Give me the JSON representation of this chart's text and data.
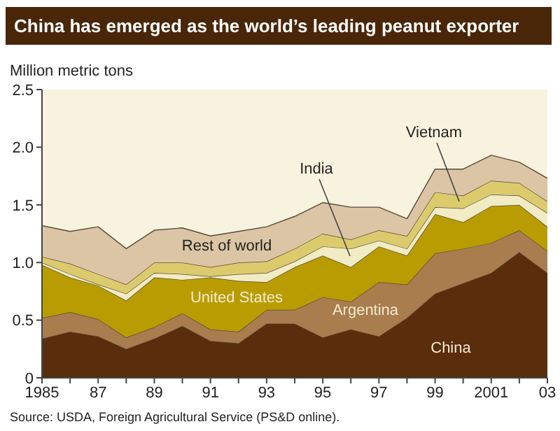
{
  "chart_data": {
    "type": "area",
    "title": "China has emerged as the world’s leading peanut exporter",
    "ylabel": "Million metric tons",
    "stacked": true,
    "x": [
      1985,
      1986,
      1987,
      1988,
      1989,
      1990,
      1991,
      1992,
      1993,
      1994,
      1995,
      1996,
      1997,
      1998,
      1999,
      2000,
      2001,
      2002,
      2003
    ],
    "xlim": [
      1985,
      2003
    ],
    "xticks": [
      1985,
      {
        "value": 1986,
        "label": null
      },
      {
        "value": 1987,
        "label": "87"
      },
      {
        "value": 1988,
        "label": null
      },
      {
        "value": 1989,
        "label": "89"
      },
      {
        "value": 1990,
        "label": null
      },
      {
        "value": 1991,
        "label": "91"
      },
      {
        "value": 1992,
        "label": null
      },
      {
        "value": 1993,
        "label": "93"
      },
      {
        "value": 1994,
        "label": null
      },
      {
        "value": 1995,
        "label": "95"
      },
      {
        "value": 1996,
        "label": null
      },
      {
        "value": 1997,
        "label": "97"
      },
      {
        "value": 1998,
        "label": null
      },
      {
        "value": 1999,
        "label": "99"
      },
      {
        "value": 2000,
        "label": null
      },
      2001,
      {
        "value": 2002,
        "label": null
      },
      {
        "value": 2003,
        "label": "03"
      }
    ],
    "ylim": [
      0,
      2.5
    ],
    "yticks": [
      0,
      0.5,
      {
        "value": 1,
        "label": "1.0"
      },
      1.5,
      {
        "value": 2,
        "label": "2.0"
      },
      2.5
    ],
    "series": [
      {
        "name": "China",
        "color": "#5a2d0c",
        "values": [
          0.34,
          0.4,
          0.36,
          0.25,
          0.34,
          0.45,
          0.32,
          0.3,
          0.47,
          0.47,
          0.35,
          0.42,
          0.36,
          0.52,
          0.73,
          0.82,
          0.91,
          1.09,
          0.91
        ]
      },
      {
        "name": "Argentina",
        "color": "#a97d4e",
        "values": [
          0.18,
          0.17,
          0.15,
          0.1,
          0.1,
          0.11,
          0.1,
          0.1,
          0.12,
          0.12,
          0.35,
          0.24,
          0.47,
          0.29,
          0.35,
          0.3,
          0.26,
          0.19,
          0.19
        ]
      },
      {
        "name": "United States",
        "color": "#b99d00",
        "values": [
          0.46,
          0.3,
          0.29,
          0.32,
          0.43,
          0.29,
          0.45,
          0.44,
          0.24,
          0.37,
          0.36,
          0.3,
          0.31,
          0.25,
          0.34,
          0.23,
          0.32,
          0.22,
          0.21
        ]
      },
      {
        "name": "India",
        "color": "#f2ecc4",
        "values": [
          0.02,
          0.03,
          0.01,
          0.06,
          0.04,
          0.05,
          0.01,
          0.06,
          0.08,
          0.05,
          0.08,
          0.16,
          0.05,
          0.06,
          0.06,
          0.12,
          0.1,
          0.08,
          0.12
        ]
      },
      {
        "name": "Vietnam",
        "color": "#dccb6c",
        "values": [
          0.05,
          0.09,
          0.09,
          0.08,
          0.09,
          0.1,
          0.08,
          0.1,
          0.1,
          0.11,
          0.11,
          0.08,
          0.09,
          0.11,
          0.13,
          0.11,
          0.12,
          0.11,
          0.1
        ]
      },
      {
        "name": "Rest of world",
        "color": "#dcc5a5",
        "values": [
          0.27,
          0.28,
          0.41,
          0.31,
          0.28,
          0.3,
          0.27,
          0.27,
          0.3,
          0.28,
          0.27,
          0.28,
          0.2,
          0.15,
          0.2,
          0.23,
          0.22,
          0.18,
          0.2
        ]
      }
    ],
    "annotations": [
      "Source: USDA, Foreign Agricultural Service (PS&D online)."
    ]
  }
}
